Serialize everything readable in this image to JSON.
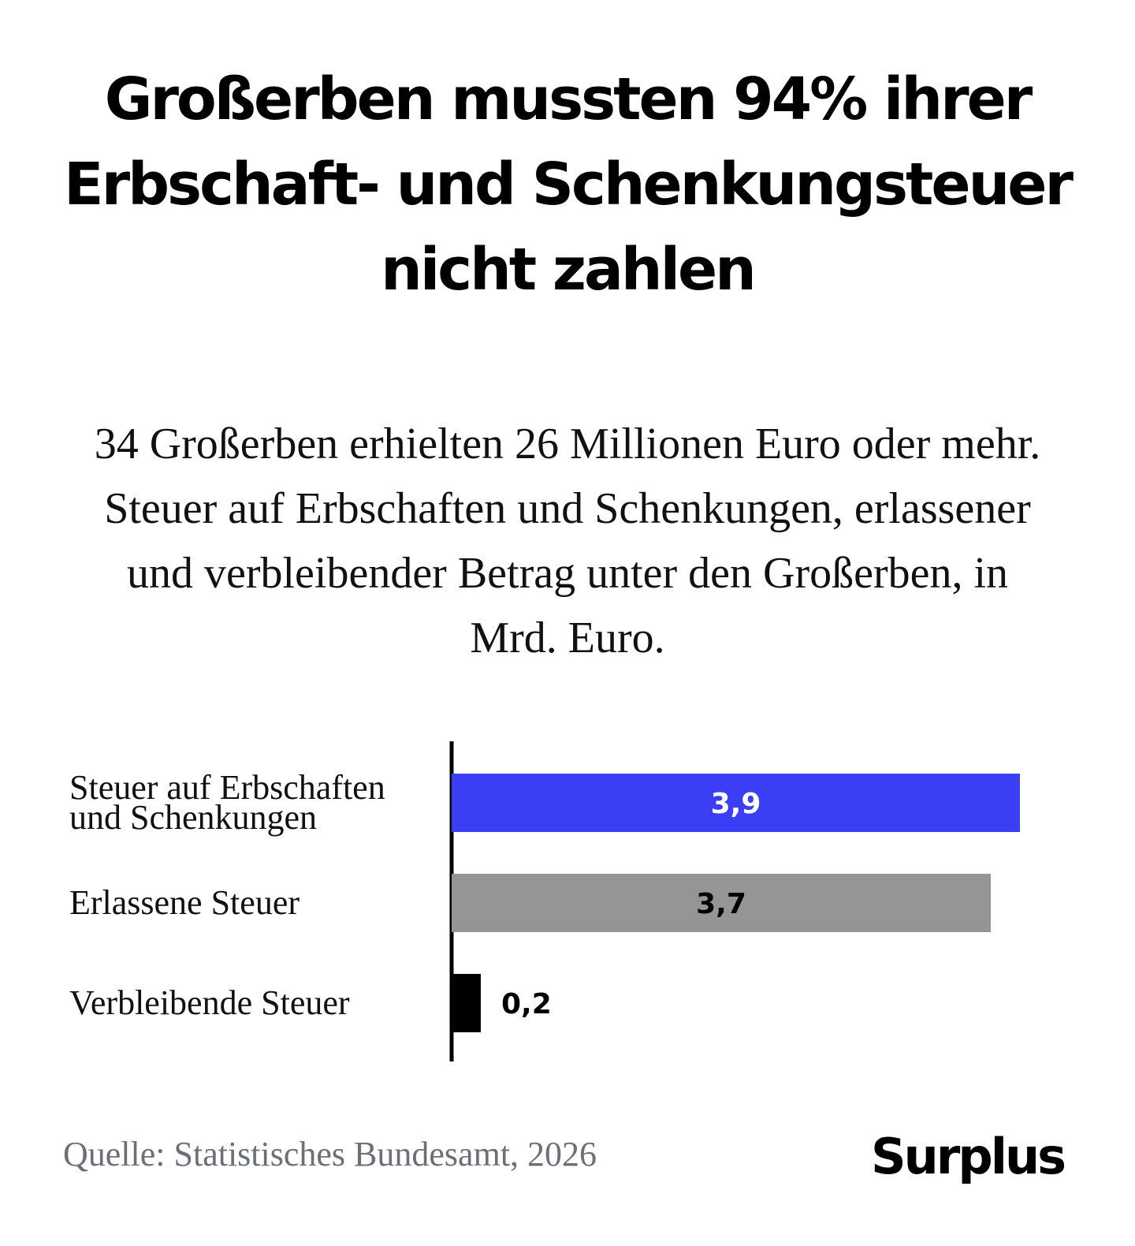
{
  "title": "Großerben mussten 94% ihrer Erbschaft- und Schenkungsteuer nicht zahlen",
  "subtitle": "34 Großerben erhielten 26 Millionen Euro oder mehr. Steuer auf Erbschaften und Schenkungen, erlassener und verbleibender Betrag unter den Großerben, in Mrd. Euro.",
  "source": "Quelle: Statistisches Bundesamt, 2026",
  "logo": "Surplus",
  "chart_data": {
    "type": "bar",
    "orientation": "horizontal",
    "categories": [
      [
        "Steuer auf Erbschaften",
        "und Schenkungen"
      ],
      [
        "Erlassene Steuer"
      ],
      [
        "Verbleibende Steuer"
      ]
    ],
    "values": [
      3.9,
      3.7,
      0.2
    ],
    "value_labels": [
      "3,9",
      "3,7",
      "0,2"
    ],
    "colors": [
      "#3a3ff6",
      "#959595",
      "#000000"
    ],
    "label_colors": [
      "#ffffff",
      "#000000",
      "#000000"
    ],
    "label_position": [
      "inside",
      "inside",
      "outside"
    ],
    "xlim": [
      0,
      3.9
    ],
    "unit": "Mrd. Euro",
    "grid": false
  }
}
